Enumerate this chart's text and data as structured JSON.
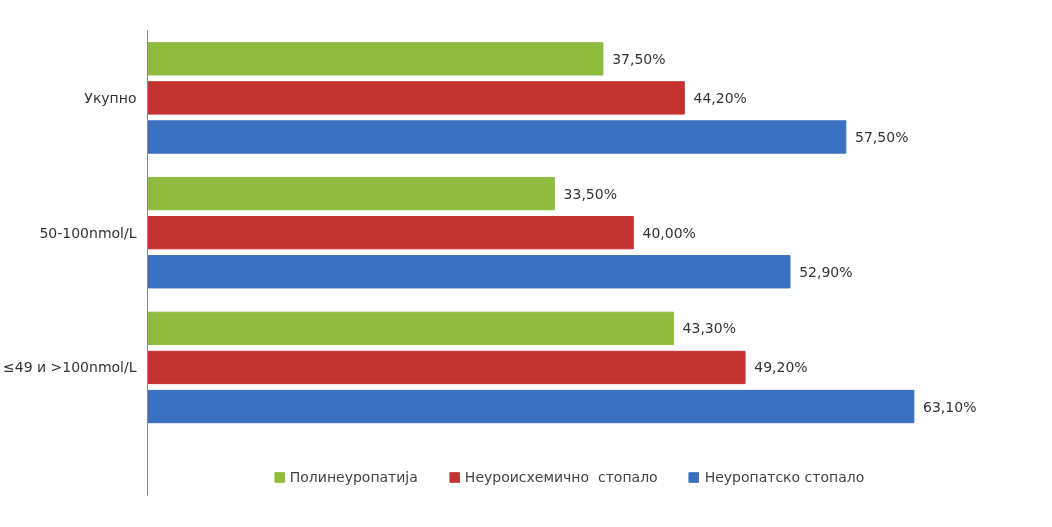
{
  "chart_data": {
    "type": "bar",
    "orientation": "horizontal",
    "categories": [
      "Укупно",
      "50-100nmol/L",
      "≤49 и >100nmol/L"
    ],
    "series": [
      {
        "name": "Полинеуропатија",
        "color": "#8fbc3f",
        "values": [
          37.5,
          33.5,
          43.3
        ],
        "value_labels": [
          "37,50%",
          "33,50%",
          "43,30%"
        ]
      },
      {
        "name": "Неуроисхемично  стопало",
        "color": "#c33331",
        "values": [
          44.2,
          40.0,
          49.2
        ],
        "value_labels": [
          "44,20%",
          "40,00%",
          "49,20%"
        ]
      },
      {
        "name": "Неуропатско стопало",
        "color": "#3b6fc0",
        "values": [
          57.5,
          52.9,
          63.1
        ],
        "value_labels": [
          "57,50%",
          "52,90%",
          "63,10%"
        ]
      }
    ],
    "legend": "bottom"
  }
}
